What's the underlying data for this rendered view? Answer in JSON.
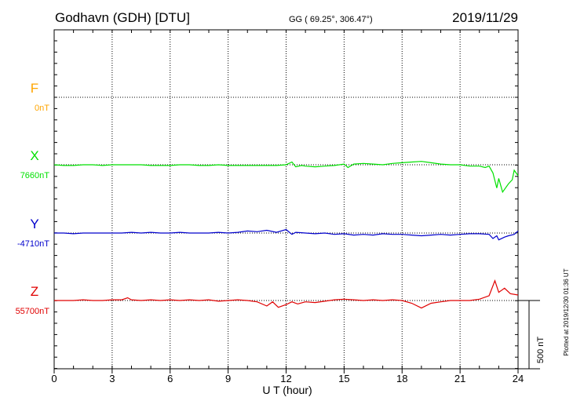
{
  "header": {
    "station": "Godhavn (GDH)  [DTU]",
    "coords": "GG ( 69.25°, 306.47°)",
    "date": "2019/11/29"
  },
  "side_note": "Plotted at 2019/12/30 01:36 UT",
  "chart_data": {
    "type": "line",
    "xlabel": "U T (hour)",
    "xlim": [
      0,
      24
    ],
    "x_ticks": [
      "0",
      "3",
      "6",
      "9",
      "12",
      "15",
      "18",
      "21",
      "24"
    ],
    "scale_bar": "500 nT",
    "scale_bar_value_nT": 500,
    "series": [
      {
        "name": "F",
        "baseline": "0nT",
        "color": "#ffa500",
        "points": []
      },
      {
        "name": "X",
        "baseline": "7660nT",
        "color": "#00e000",
        "points": [
          [
            0,
            0
          ],
          [
            0.5,
            -5
          ],
          [
            1,
            -5
          ],
          [
            1.5,
            0
          ],
          [
            2,
            0
          ],
          [
            2.5,
            -5
          ],
          [
            3,
            0
          ],
          [
            3.5,
            0
          ],
          [
            4,
            0
          ],
          [
            4.5,
            0
          ],
          [
            5,
            -5
          ],
          [
            5.5,
            -5
          ],
          [
            6,
            -5
          ],
          [
            6.5,
            0
          ],
          [
            7,
            0
          ],
          [
            7.5,
            -5
          ],
          [
            8,
            -5
          ],
          [
            8.5,
            0
          ],
          [
            9,
            -5
          ],
          [
            9.5,
            -5
          ],
          [
            10,
            -5
          ],
          [
            10.5,
            -5
          ],
          [
            11,
            -5
          ],
          [
            11.5,
            -5
          ],
          [
            12,
            0
          ],
          [
            12.3,
            20
          ],
          [
            12.5,
            -15
          ],
          [
            12.8,
            -5
          ],
          [
            13,
            -10
          ],
          [
            13.5,
            -15
          ],
          [
            14,
            -10
          ],
          [
            14.5,
            -5
          ],
          [
            15,
            5
          ],
          [
            15.2,
            -20
          ],
          [
            15.5,
            5
          ],
          [
            16,
            10
          ],
          [
            16.5,
            5
          ],
          [
            17,
            0
          ],
          [
            17.5,
            10
          ],
          [
            18,
            15
          ],
          [
            18.5,
            20
          ],
          [
            19,
            25
          ],
          [
            19.5,
            15
          ],
          [
            20,
            5
          ],
          [
            20.5,
            0
          ],
          [
            21,
            0
          ],
          [
            21.5,
            -10
          ],
          [
            22,
            -10
          ],
          [
            22.3,
            -20
          ],
          [
            22.5,
            -10
          ],
          [
            22.7,
            -60
          ],
          [
            22.9,
            -170
          ],
          [
            23,
            -100
          ],
          [
            23.2,
            -200
          ],
          [
            23.5,
            -140
          ],
          [
            23.7,
            -110
          ],
          [
            23.8,
            -40
          ],
          [
            24,
            -80
          ]
        ]
      },
      {
        "name": "Y",
        "baseline": "-4710nT",
        "color": "#0000cc",
        "points": [
          [
            0,
            0
          ],
          [
            0.5,
            0
          ],
          [
            1,
            -5
          ],
          [
            1.5,
            0
          ],
          [
            2,
            0
          ],
          [
            2.5,
            0
          ],
          [
            3,
            0
          ],
          [
            3.5,
            0
          ],
          [
            4,
            5
          ],
          [
            4.5,
            0
          ],
          [
            5,
            5
          ],
          [
            5.5,
            0
          ],
          [
            6,
            0
          ],
          [
            6.5,
            5
          ],
          [
            7,
            0
          ],
          [
            7.5,
            0
          ],
          [
            8,
            0
          ],
          [
            8.5,
            5
          ],
          [
            9,
            0
          ],
          [
            9.5,
            5
          ],
          [
            10,
            15
          ],
          [
            10.5,
            10
          ],
          [
            11,
            20
          ],
          [
            11.5,
            5
          ],
          [
            12,
            25
          ],
          [
            12.3,
            -10
          ],
          [
            12.5,
            5
          ],
          [
            13,
            0
          ],
          [
            13.5,
            -5
          ],
          [
            14,
            0
          ],
          [
            14.5,
            -10
          ],
          [
            15,
            -5
          ],
          [
            15.5,
            -15
          ],
          [
            16,
            -10
          ],
          [
            16.5,
            -15
          ],
          [
            17,
            -5
          ],
          [
            17.5,
            -10
          ],
          [
            18,
            -10
          ],
          [
            18.5,
            -15
          ],
          [
            19,
            -20
          ],
          [
            19.5,
            -15
          ],
          [
            20,
            -10
          ],
          [
            20.5,
            -15
          ],
          [
            21,
            -10
          ],
          [
            21.5,
            -5
          ],
          [
            22,
            -5
          ],
          [
            22.5,
            -10
          ],
          [
            22.7,
            -40
          ],
          [
            22.9,
            -20
          ],
          [
            23,
            -50
          ],
          [
            23.3,
            -30
          ],
          [
            23.5,
            -20
          ],
          [
            23.8,
            -10
          ],
          [
            24,
            15
          ]
        ]
      },
      {
        "name": "Z",
        "baseline": "55700nT",
        "color": "#e00000",
        "points": [
          [
            0,
            0
          ],
          [
            0.5,
            0
          ],
          [
            1,
            0
          ],
          [
            1.5,
            5
          ],
          [
            2,
            0
          ],
          [
            2.5,
            0
          ],
          [
            3,
            5
          ],
          [
            3.5,
            5
          ],
          [
            3.8,
            20
          ],
          [
            4,
            5
          ],
          [
            4.5,
            0
          ],
          [
            5,
            5
          ],
          [
            5.5,
            0
          ],
          [
            6,
            5
          ],
          [
            6.5,
            0
          ],
          [
            7,
            5
          ],
          [
            7.5,
            0
          ],
          [
            8,
            5
          ],
          [
            8.5,
            -5
          ],
          [
            9,
            0
          ],
          [
            9.5,
            5
          ],
          [
            10,
            0
          ],
          [
            10.5,
            -10
          ],
          [
            11,
            -40
          ],
          [
            11.3,
            -10
          ],
          [
            11.6,
            -50
          ],
          [
            12,
            -30
          ],
          [
            12.3,
            -10
          ],
          [
            12.6,
            -25
          ],
          [
            13,
            -10
          ],
          [
            13.5,
            -15
          ],
          [
            14,
            -5
          ],
          [
            14.5,
            5
          ],
          [
            15,
            10
          ],
          [
            15.5,
            5
          ],
          [
            16,
            0
          ],
          [
            16.5,
            5
          ],
          [
            17,
            0
          ],
          [
            17.5,
            5
          ],
          [
            18,
            0
          ],
          [
            18.5,
            -20
          ],
          [
            19,
            -55
          ],
          [
            19.5,
            -20
          ],
          [
            20,
            -10
          ],
          [
            20.5,
            0
          ],
          [
            21,
            0
          ],
          [
            21.5,
            0
          ],
          [
            22,
            10
          ],
          [
            22.5,
            35
          ],
          [
            22.8,
            145
          ],
          [
            23,
            60
          ],
          [
            23.3,
            90
          ],
          [
            23.6,
            50
          ],
          [
            24,
            40
          ]
        ]
      }
    ]
  }
}
